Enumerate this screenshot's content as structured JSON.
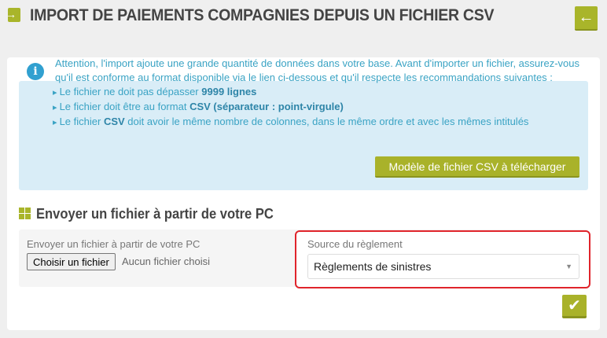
{
  "header": {
    "title": "IMPORT DE PAIEMENTS COMPAGNIES DEPUIS UN FICHIER CSV",
    "back_icon": "arrow-left-icon",
    "title_icon": "file-import-icon"
  },
  "info": {
    "intro": "Attention, l'import ajoute une grande quantité de données dans votre base. Avant d'importer un fichier, assurez-vous qu'il est conforme au format disponible via le lien ci-dessous et qu'il respecte les recommandations suivantes :",
    "items": [
      {
        "pre": "Le fichier ne doit pas dépasser ",
        "bold": "9999 lignes",
        "post": ""
      },
      {
        "pre": "Le fichier doit être au format ",
        "bold": "CSV (séparateur : point-virgule)",
        "post": ""
      },
      {
        "pre": "Le fichier ",
        "bold": "CSV",
        "post": " doit avoir le même nombre de colonnes, dans le même ordre et avec les mêmes intitulés"
      }
    ],
    "model_button": "Modèle de fichier CSV à télécharger",
    "accent": "#d9edf7"
  },
  "section": {
    "title": "Envoyer un fichier à partir de votre PC"
  },
  "upload": {
    "label": "Envoyer un fichier à partir de votre PC",
    "button": "Choisir un fichier",
    "status": "Aucun fichier choisi"
  },
  "source": {
    "label": "Source du règlement",
    "selected": "Règlements de sinistres"
  },
  "colors": {
    "brand": "#a9b22a",
    "highlight": "#e0242b"
  }
}
